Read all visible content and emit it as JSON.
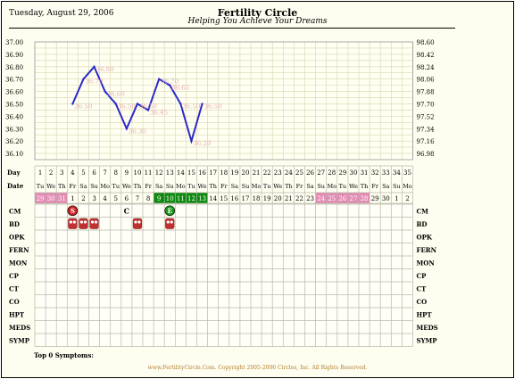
{
  "header": {
    "date": "Tuesday, August 29, 2006",
    "title": "Fertility Circle",
    "subtitle": "Helping You Achieve Your Dreams"
  },
  "chart_data": {
    "type": "line",
    "title": "",
    "xlabel": "Day",
    "ylabel": "",
    "left_axis_ticks": [
      "37.00",
      "36.90",
      "36.80",
      "36.70",
      "36.60",
      "36.50",
      "36.40",
      "36.30",
      "36.20",
      "36.10"
    ],
    "right_axis_ticks": [
      "98.60",
      "98.42",
      "98.24",
      "98.06",
      "97.88",
      "97.70",
      "97.52",
      "97.34",
      "97.16",
      "96.98"
    ],
    "ylim": [
      36.05,
      37.0
    ],
    "grid": true,
    "series": [
      {
        "x": [
          4,
          5,
          6,
          7,
          8,
          9,
          10,
          11,
          12,
          13,
          14,
          15,
          16
        ],
        "values": [
          36.5,
          36.7,
          36.8,
          36.6,
          36.5,
          36.3,
          36.5,
          36.45,
          36.7,
          36.65,
          36.5,
          36.2,
          36.5
        ],
        "labels": [
          "36.50",
          "36.70",
          "36.80",
          "36.60",
          "36.50",
          "36.30",
          "36.50",
          "36.45",
          "36.70",
          "36.65",
          "36.50",
          "36.20",
          "36.50"
        ]
      }
    ],
    "line_color": "#2a2ac8",
    "label_color": "#e8b0b0"
  },
  "rows": {
    "day_label": "Day",
    "date_label": "Date",
    "days": [
      "1",
      "2",
      "3",
      "4",
      "5",
      "6",
      "7",
      "8",
      "9",
      "10",
      "11",
      "12",
      "13",
      "14",
      "15",
      "16",
      "17",
      "18",
      "19",
      "20",
      "21",
      "22",
      "23",
      "24",
      "25",
      "26",
      "27",
      "28",
      "29",
      "30",
      "31",
      "32",
      "33",
      "34",
      "35"
    ],
    "weekdays": [
      "Tu",
      "We",
      "Th",
      "Fr",
      "Sa",
      "Su",
      "Mo",
      "Tu",
      "We",
      "Th",
      "Fr",
      "Sa",
      "Su",
      "Mo",
      "Tu",
      "We",
      "Th",
      "Fr",
      "Sa",
      "Su",
      "Mo",
      "Tu",
      "We",
      "Th",
      "Fr",
      "Sa",
      "Su",
      "Mo",
      "Tu",
      "We",
      "Th",
      "Fr",
      "Sa",
      "Su",
      "Mo"
    ],
    "dates": [
      "29",
      "30",
      "31",
      "1",
      "2",
      "3",
      "4",
      "5",
      "6",
      "7",
      "8",
      "9",
      "10",
      "11",
      "12",
      "13",
      "14",
      "15",
      "16",
      "17",
      "18",
      "19",
      "20",
      "21",
      "22",
      "23",
      "24",
      "25",
      "26",
      "27",
      "28",
      "29",
      "30",
      "1",
      "2"
    ],
    "date_styles": [
      "pink",
      "pink",
      "pink",
      "",
      "",
      "",
      "",
      "",
      "",
      "",
      "",
      "green",
      "green",
      "green",
      "green",
      "green",
      "",
      "",
      "",
      "",
      "",
      "",
      "",
      "",
      "",
      "",
      "pink",
      "pink",
      "pink",
      "pink",
      "pink",
      "",
      "",
      "",
      ""
    ],
    "obs_labels": [
      "CM",
      "BD",
      "OPK",
      "FERN",
      "MON",
      "CP",
      "CT",
      "CO",
      "HPT",
      "MEDS",
      "SYMP"
    ],
    "cm_marks": [
      {
        "day": 4,
        "kind": "badge",
        "text": "S",
        "color": "#cc2020"
      },
      {
        "day": 9,
        "kind": "letter",
        "text": "C"
      },
      {
        "day": 13,
        "kind": "badge",
        "text": "E",
        "color": "#1a9a1a"
      }
    ],
    "bd_days": [
      4,
      5,
      6,
      10,
      13
    ],
    "colors": {
      "pink": "#e38ab5",
      "green": "#0e8a0e",
      "grid": "#b8b8a8",
      "line": "#2a2ac8"
    }
  },
  "footer": {
    "top0": "Top 0 Symptoms:",
    "copyright": "www.FertilityCircle.Com. Copyright 2005-2006 Circles, Inc. All Rights Reserved."
  }
}
